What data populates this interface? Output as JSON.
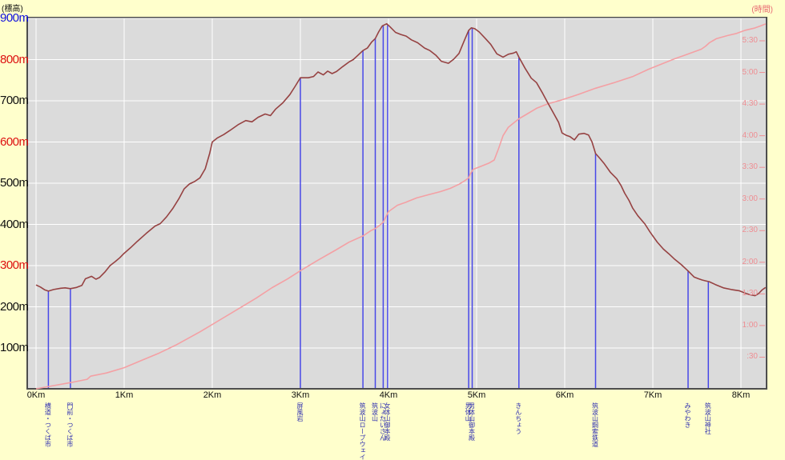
{
  "titles": {
    "left": "(標高)",
    "right": "(時間)"
  },
  "colors": {
    "background": "#ffffcc",
    "plot_bg": "#dbdbdb",
    "grid": "#ffffff",
    "border": "#4d4d4d",
    "elevation_line": "#964242",
    "time_line": "#f4a0a4",
    "marker_line": "#4848e8",
    "marker_label": "#3030b0",
    "label_black": "#111111",
    "label_blue": "#1111dd",
    "label_red": "#dd1111",
    "time_label": "#ef8e93"
  },
  "elev_axis": {
    "labels": [
      {
        "text": "900m",
        "value": 900,
        "color": "blue"
      },
      {
        "text": "800m",
        "value": 800,
        "color": "red"
      },
      {
        "text": "700m",
        "value": 700,
        "color": "black"
      },
      {
        "text": "600m",
        "value": 600,
        "color": "red"
      },
      {
        "text": "500m",
        "value": 500,
        "color": "black"
      },
      {
        "text": "400m",
        "value": 400,
        "color": "black"
      },
      {
        "text": "300m",
        "value": 300,
        "color": "red"
      },
      {
        "text": "200m",
        "value": 200,
        "color": "black"
      },
      {
        "text": "100m",
        "value": 100,
        "color": "black"
      }
    ]
  },
  "time_axis": {
    "labels": [
      {
        "text": "5:30",
        "minutes": 330
      },
      {
        "text": "5:00",
        "minutes": 300
      },
      {
        "text": "4:30",
        "minutes": 270
      },
      {
        "text": "4:00",
        "minutes": 240
      },
      {
        "text": "3:30",
        "minutes": 210
      },
      {
        "text": "3:00",
        "minutes": 180
      },
      {
        "text": "2:30",
        "minutes": 150
      },
      {
        "text": "2:00",
        "minutes": 120
      },
      {
        "text": "1:30",
        "minutes": 90
      },
      {
        "text": "1:00",
        "minutes": 60
      },
      {
        "text": ":30",
        "minutes": 30
      }
    ]
  },
  "x_axis": {
    "labels": [
      {
        "text": "0Km",
        "km": 0
      },
      {
        "text": "1Km",
        "km": 1
      },
      {
        "text": "2Km",
        "km": 2
      },
      {
        "text": "3Km",
        "km": 3
      },
      {
        "text": "4Km",
        "km": 4
      },
      {
        "text": "5Km",
        "km": 5
      },
      {
        "text": "6Km",
        "km": 6
      },
      {
        "text": "7Km",
        "km": 7
      },
      {
        "text": "8Km",
        "km": 8
      }
    ]
  },
  "markers": [
    {
      "label": "横道・つくば市",
      "km": 0.14,
      "top_m": 238
    },
    {
      "label": "門前・つくば市",
      "km": 0.39,
      "top_m": 244
    },
    {
      "label": "屏風岩",
      "km": 3.0,
      "top_m": 756
    },
    {
      "label": "筑波山ロープウェイ",
      "km": 3.71,
      "top_m": 822
    },
    {
      "label": "筑波山",
      "km": 3.85,
      "top_m": 851
    },
    {
      "label": "にょたいさん",
      "km": 3.94,
      "top_m": 882
    },
    {
      "label": "女体山御本殿",
      "km": 3.99,
      "top_m": 884
    },
    {
      "label": "男体山",
      "km": 4.91,
      "top_m": 871
    },
    {
      "label": "男体山御本殿",
      "km": 4.95,
      "top_m": 877
    },
    {
      "label": "きんちょう",
      "km": 5.48,
      "top_m": 806
    },
    {
      "label": "筑波山鋼索鉄道",
      "km": 6.35,
      "top_m": 572
    },
    {
      "label": "みやわき",
      "km": 7.4,
      "top_m": 287
    },
    {
      "label": "筑波山神社",
      "km": 7.63,
      "top_m": 262
    }
  ],
  "chart_data": {
    "type": "line",
    "x_unit": "Km",
    "x_range": [
      0,
      8.3
    ],
    "elev_range_m": [
      0,
      900
    ],
    "time_range_min": [
      0,
      352
    ],
    "grid": true,
    "series": [
      {
        "name": "elevation_profile",
        "axis": "left",
        "unit": "m",
        "points": [
          [
            0,
            253
          ],
          [
            0.05,
            248
          ],
          [
            0.1,
            241
          ],
          [
            0.14,
            238
          ],
          [
            0.2,
            242
          ],
          [
            0.28,
            245
          ],
          [
            0.33,
            246
          ],
          [
            0.39,
            244
          ],
          [
            0.46,
            247
          ],
          [
            0.52,
            252
          ],
          [
            0.56,
            268
          ],
          [
            0.63,
            274
          ],
          [
            0.68,
            267
          ],
          [
            0.72,
            271
          ],
          [
            0.78,
            284
          ],
          [
            0.84,
            300
          ],
          [
            0.9,
            310
          ],
          [
            0.95,
            319
          ],
          [
            1.0,
            330
          ],
          [
            1.07,
            343
          ],
          [
            1.15,
            359
          ],
          [
            1.25,
            378
          ],
          [
            1.35,
            396
          ],
          [
            1.41,
            402
          ],
          [
            1.48,
            418
          ],
          [
            1.55,
            438
          ],
          [
            1.62,
            462
          ],
          [
            1.68,
            486
          ],
          [
            1.74,
            498
          ],
          [
            1.8,
            504
          ],
          [
            1.86,
            513
          ],
          [
            1.92,
            535
          ],
          [
            1.97,
            572
          ],
          [
            2.0,
            600
          ],
          [
            2.06,
            610
          ],
          [
            2.13,
            618
          ],
          [
            2.2,
            628
          ],
          [
            2.3,
            643
          ],
          [
            2.38,
            652
          ],
          [
            2.45,
            649
          ],
          [
            2.52,
            660
          ],
          [
            2.6,
            668
          ],
          [
            2.66,
            664
          ],
          [
            2.72,
            680
          ],
          [
            2.8,
            695
          ],
          [
            2.88,
            715
          ],
          [
            2.94,
            735
          ],
          [
            3.0,
            756
          ],
          [
            3.09,
            756
          ],
          [
            3.15,
            759
          ],
          [
            3.2,
            770
          ],
          [
            3.26,
            763
          ],
          [
            3.31,
            772
          ],
          [
            3.36,
            766
          ],
          [
            3.41,
            771
          ],
          [
            3.48,
            783
          ],
          [
            3.55,
            794
          ],
          [
            3.6,
            800
          ],
          [
            3.64,
            808
          ],
          [
            3.71,
            822
          ],
          [
            3.76,
            828
          ],
          [
            3.81,
            843
          ],
          [
            3.85,
            851
          ],
          [
            3.89,
            868
          ],
          [
            3.93,
            882
          ],
          [
            3.98,
            887
          ],
          [
            4.02,
            879
          ],
          [
            4.08,
            866
          ],
          [
            4.14,
            861
          ],
          [
            4.2,
            857
          ],
          [
            4.26,
            848
          ],
          [
            4.33,
            841
          ],
          [
            4.41,
            828
          ],
          [
            4.47,
            822
          ],
          [
            4.54,
            810
          ],
          [
            4.6,
            796
          ],
          [
            4.68,
            791
          ],
          [
            4.74,
            801
          ],
          [
            4.8,
            815
          ],
          [
            4.86,
            846
          ],
          [
            4.91,
            871
          ],
          [
            4.94,
            877
          ],
          [
            4.98,
            875
          ],
          [
            5.03,
            867
          ],
          [
            5.1,
            851
          ],
          [
            5.16,
            837
          ],
          [
            5.23,
            814
          ],
          [
            5.3,
            806
          ],
          [
            5.36,
            813
          ],
          [
            5.42,
            816
          ],
          [
            5.45,
            819
          ],
          [
            5.48,
            806
          ],
          [
            5.55,
            779
          ],
          [
            5.62,
            755
          ],
          [
            5.68,
            744
          ],
          [
            5.75,
            718
          ],
          [
            5.8,
            698
          ],
          [
            5.87,
            671
          ],
          [
            5.93,
            648
          ],
          [
            5.97,
            622
          ],
          [
            6.02,
            616
          ],
          [
            6.06,
            613
          ],
          [
            6.11,
            605
          ],
          [
            6.16,
            619
          ],
          [
            6.22,
            621
          ],
          [
            6.27,
            617
          ],
          [
            6.31,
            600
          ],
          [
            6.35,
            572
          ],
          [
            6.4,
            560
          ],
          [
            6.45,
            547
          ],
          [
            6.52,
            526
          ],
          [
            6.59,
            511
          ],
          [
            6.64,
            494
          ],
          [
            6.68,
            476
          ],
          [
            6.73,
            458
          ],
          [
            6.77,
            440
          ],
          [
            6.83,
            421
          ],
          [
            6.91,
            401
          ],
          [
            6.97,
            381
          ],
          [
            7.05,
            357
          ],
          [
            7.12,
            340
          ],
          [
            7.18,
            329
          ],
          [
            7.25,
            315
          ],
          [
            7.32,
            303
          ],
          [
            7.4,
            287
          ],
          [
            7.47,
            272
          ],
          [
            7.52,
            268
          ],
          [
            7.56,
            265
          ],
          [
            7.6,
            263
          ],
          [
            7.64,
            261
          ],
          [
            7.71,
            254
          ],
          [
            7.8,
            246
          ],
          [
            7.89,
            242
          ],
          [
            7.98,
            239
          ],
          [
            8.05,
            233
          ],
          [
            8.11,
            229
          ],
          [
            8.16,
            227
          ],
          [
            8.2,
            232
          ],
          [
            8.24,
            241
          ],
          [
            8.28,
            247
          ]
        ]
      },
      {
        "name": "elapsed_time",
        "axis": "right",
        "unit": "min",
        "points": [
          [
            0,
            0
          ],
          [
            0.2,
            3
          ],
          [
            0.4,
            6
          ],
          [
            0.58,
            9
          ],
          [
            0.62,
            12
          ],
          [
            0.8,
            15
          ],
          [
            1.0,
            20
          ],
          [
            1.2,
            27
          ],
          [
            1.4,
            34
          ],
          [
            1.6,
            42
          ],
          [
            1.86,
            54
          ],
          [
            2.1,
            66
          ],
          [
            2.3,
            76
          ],
          [
            2.5,
            86
          ],
          [
            2.68,
            96
          ],
          [
            2.85,
            104
          ],
          [
            3.0,
            112
          ],
          [
            3.2,
            122
          ],
          [
            3.41,
            132
          ],
          [
            3.55,
            139
          ],
          [
            3.71,
            145
          ],
          [
            3.8,
            150
          ],
          [
            3.85,
            152
          ],
          [
            3.9,
            155
          ],
          [
            3.94,
            158
          ],
          [
            3.97,
            163
          ],
          [
            4.0,
            168
          ],
          [
            4.05,
            171
          ],
          [
            4.1,
            174
          ],
          [
            4.2,
            177
          ],
          [
            4.32,
            181
          ],
          [
            4.45,
            184
          ],
          [
            4.59,
            187
          ],
          [
            4.7,
            190
          ],
          [
            4.8,
            194
          ],
          [
            4.86,
            197
          ],
          [
            4.91,
            200
          ],
          [
            4.93,
            204
          ],
          [
            4.96,
            208
          ],
          [
            5.05,
            211
          ],
          [
            5.14,
            214
          ],
          [
            5.2,
            217
          ],
          [
            5.25,
            228
          ],
          [
            5.3,
            240
          ],
          [
            5.36,
            248
          ],
          [
            5.42,
            252
          ],
          [
            5.48,
            256
          ],
          [
            5.58,
            261
          ],
          [
            5.68,
            266
          ],
          [
            5.8,
            270
          ],
          [
            5.97,
            274
          ],
          [
            6.15,
            279
          ],
          [
            6.35,
            285
          ],
          [
            6.55,
            290
          ],
          [
            6.77,
            296
          ],
          [
            6.95,
            303
          ],
          [
            7.1,
            308
          ],
          [
            7.25,
            313
          ],
          [
            7.35,
            316
          ],
          [
            7.45,
            319
          ],
          [
            7.55,
            322
          ],
          [
            7.6,
            325
          ],
          [
            7.64,
            328
          ],
          [
            7.68,
            330
          ],
          [
            7.72,
            332
          ],
          [
            7.85,
            335
          ],
          [
            7.95,
            337
          ],
          [
            8.05,
            340
          ],
          [
            8.15,
            342
          ],
          [
            8.22,
            344
          ],
          [
            8.28,
            346
          ]
        ]
      }
    ]
  }
}
